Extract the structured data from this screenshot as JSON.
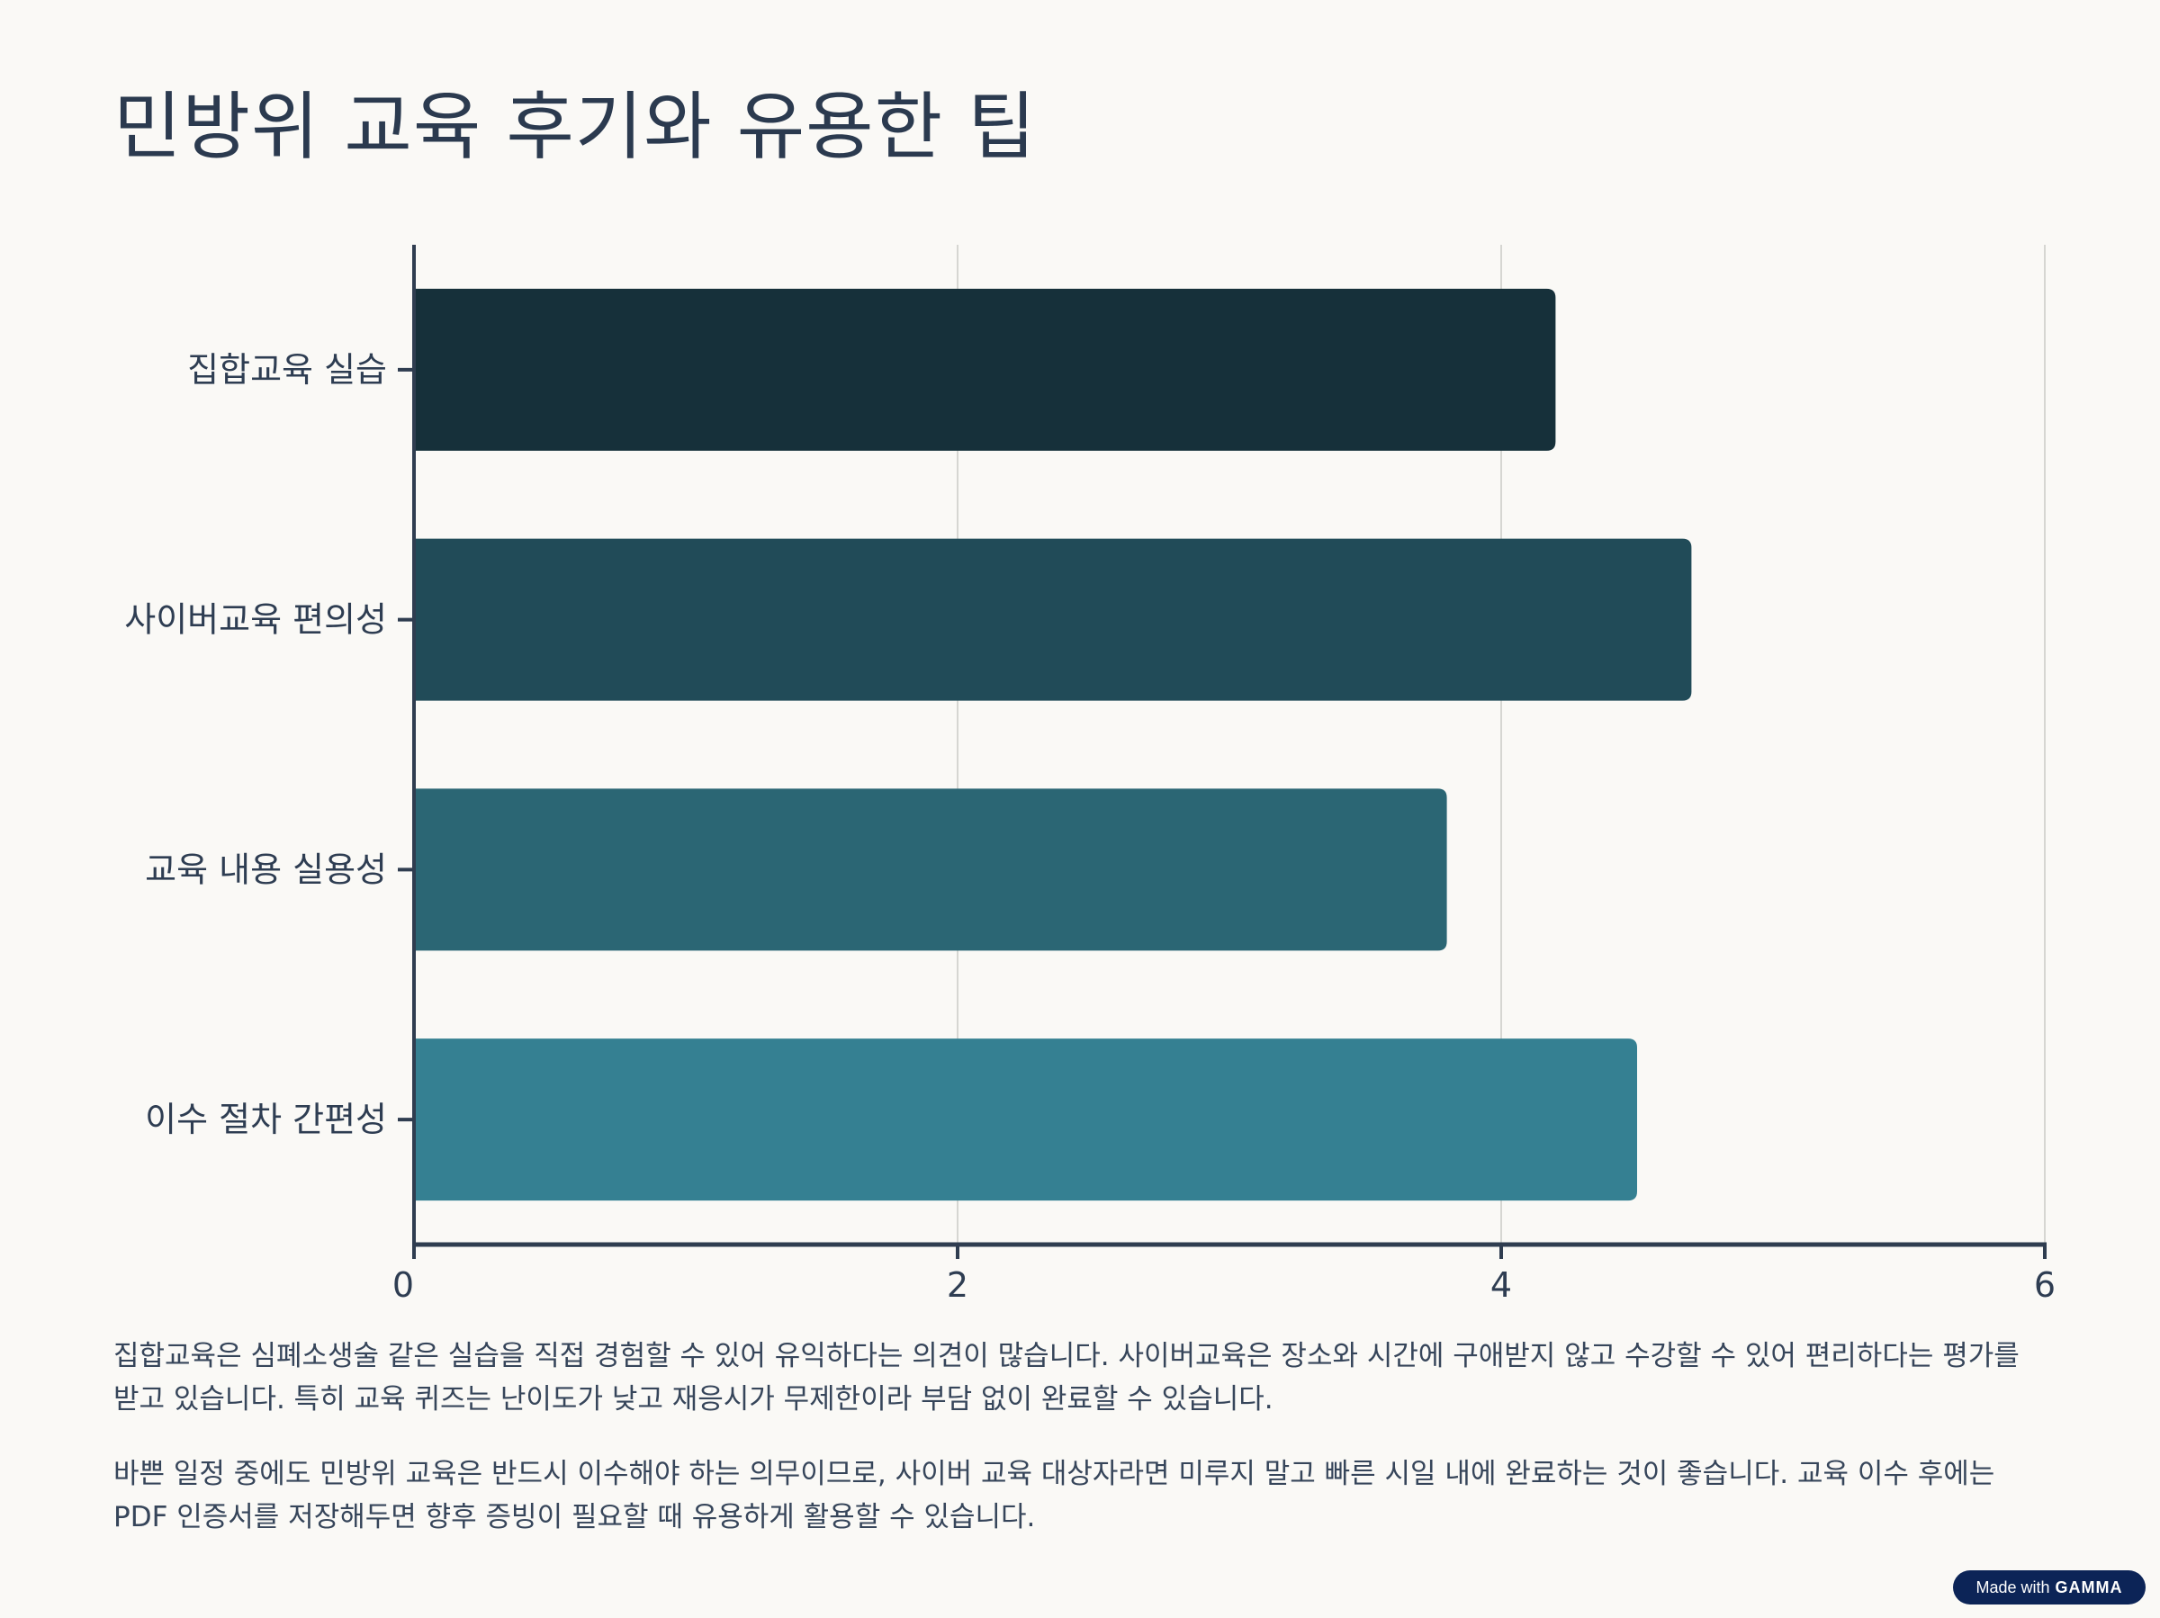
{
  "page": {
    "title": "민방위 교육 후기와 유용한 팁",
    "paragraphs": [
      "집합교육은 심폐소생술 같은 실습을 직접 경험할 수 있어 유익하다는 의견이 많습니다. 사이버교육은 장소와 시간에 구애받지 않고 수강할 수 있어 편리하다는 평가를 받고 있습니다. 특히 교육 퀴즈는 난이도가 낮고 재응시가 무제한이라 부담 없이 완료할 수 있습니다.",
      "바쁜 일정 중에도 민방위 교육은 반드시 이수해야 하는 의무이므로, 사이버 교육 대상자라면 미루지 말고 빠른 시일 내에 완료하는 것이 좋습니다. 교육 이수 후에는 PDF 인증서를 저장해두면 향후 증빙이 필요할 때 유용하게 활용할 수 있습니다."
    ],
    "badge": {
      "prefix": "Made with",
      "brand": "GAMMA"
    }
  },
  "chart_data": {
    "type": "bar",
    "orientation": "horizontal",
    "categories": [
      "집합교육 실습",
      "사이버교육 편의성",
      "교육 내용 실용성",
      "이수 절차 간편성"
    ],
    "values": [
      4.2,
      4.7,
      3.8,
      4.5
    ],
    "colors": [
      "#16303a",
      "#214b58",
      "#2b6674",
      "#358092"
    ],
    "xlim": [
      0,
      6
    ],
    "xticks": [
      0,
      2,
      4,
      6
    ],
    "grid": true,
    "title": "",
    "xlabel": "",
    "ylabel": ""
  }
}
